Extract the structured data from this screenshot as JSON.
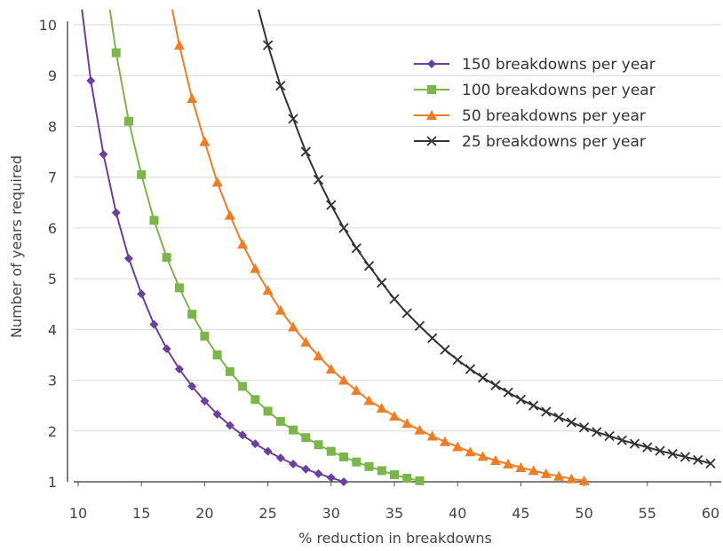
{
  "chart_data": {
    "type": "line",
    "title": "",
    "xlabel": "% reduction in breakdowns",
    "ylabel": "Number of years required",
    "xlim": [
      10,
      60
    ],
    "ylim": [
      1,
      10
    ],
    "x_ticks": [
      "10",
      "15",
      "20",
      "25",
      "30",
      "35",
      "40",
      "45",
      "50",
      "55",
      "60"
    ],
    "y_ticks": [
      "1",
      "2",
      "3",
      "4",
      "5",
      "6",
      "7",
      "8",
      "9",
      "10"
    ],
    "grid": "horizontal",
    "legend_position": "top-right",
    "series": [
      {
        "name": "150 breakdowns per year",
        "color": "#6b3fa0",
        "marker": "diamond",
        "x": [
          11,
          12,
          13,
          14,
          15,
          16,
          17,
          18,
          19,
          20,
          21,
          22,
          23,
          24,
          25,
          26,
          27,
          28,
          29,
          30,
          31
        ],
        "y": [
          8.9,
          7.45,
          6.3,
          5.4,
          4.7,
          4.1,
          3.62,
          3.22,
          2.88,
          2.59,
          2.33,
          2.11,
          1.92,
          1.75,
          1.6,
          1.47,
          1.35,
          1.25,
          1.16,
          1.08,
          1.0
        ]
      },
      {
        "name": "100 breakdowns per year",
        "color": "#7ab648",
        "marker": "square",
        "x": [
          13,
          14,
          15,
          16,
          17,
          18,
          19,
          20,
          21,
          22,
          23,
          24,
          25,
          26,
          27,
          28,
          29,
          30,
          31,
          32,
          33,
          34,
          35,
          36,
          37
        ],
        "y": [
          9.45,
          8.1,
          7.05,
          6.15,
          5.42,
          4.82,
          4.3,
          3.87,
          3.5,
          3.17,
          2.88,
          2.62,
          2.39,
          2.19,
          2.02,
          1.87,
          1.73,
          1.6,
          1.49,
          1.39,
          1.3,
          1.22,
          1.14,
          1.07,
          1.02
        ]
      },
      {
        "name": "50 breakdowns per year",
        "color": "#f07c24",
        "marker": "triangle",
        "x": [
          18,
          19,
          20,
          21,
          22,
          23,
          24,
          25,
          26,
          27,
          28,
          29,
          30,
          31,
          32,
          33,
          34,
          35,
          36,
          37,
          38,
          39,
          40,
          41,
          42,
          43,
          44,
          45,
          46,
          47,
          48,
          49,
          50
        ],
        "y": [
          9.6,
          8.55,
          7.7,
          6.9,
          6.25,
          5.68,
          5.2,
          4.77,
          4.38,
          4.05,
          3.75,
          3.48,
          3.22,
          3.0,
          2.8,
          2.6,
          2.45,
          2.29,
          2.15,
          2.02,
          1.9,
          1.79,
          1.69,
          1.59,
          1.5,
          1.42,
          1.35,
          1.28,
          1.22,
          1.16,
          1.11,
          1.06,
          1.02
        ]
      },
      {
        "name": "25 breakdowns per year",
        "color": "#333333",
        "marker": "x",
        "x": [
          25,
          26,
          27,
          28,
          29,
          30,
          31,
          32,
          33,
          34,
          35,
          36,
          37,
          38,
          39,
          40,
          41,
          42,
          43,
          44,
          45,
          46,
          47,
          48,
          49,
          50,
          51,
          52,
          53,
          54,
          55,
          56,
          57,
          58,
          59,
          60
        ],
        "y": [
          9.6,
          8.8,
          8.15,
          7.5,
          6.95,
          6.45,
          6.0,
          5.6,
          5.25,
          4.92,
          4.6,
          4.32,
          4.07,
          3.83,
          3.6,
          3.4,
          3.22,
          3.05,
          2.9,
          2.76,
          2.62,
          2.5,
          2.38,
          2.27,
          2.17,
          2.07,
          1.98,
          1.9,
          1.82,
          1.75,
          1.68,
          1.61,
          1.55,
          1.49,
          1.43,
          1.36
        ]
      }
    ]
  }
}
